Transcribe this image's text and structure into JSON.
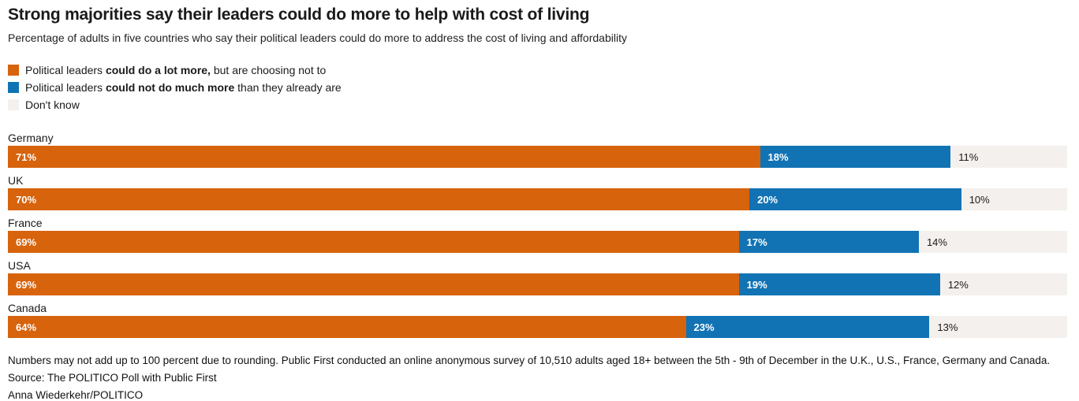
{
  "header": {
    "title": "Strong majorities say their leaders could do more to help with cost of living",
    "subtitle": "Percentage of adults in five countries who say their political leaders could do more to address the cost of living and affordability"
  },
  "colors": {
    "could_do_more": "#D7630D",
    "could_not_do_more": "#1173B4",
    "dont_know": "#F4F0ED",
    "text_dark": "#1A1A1A"
  },
  "legend": {
    "items": [
      {
        "swatch": "orange-swatch",
        "prefix": "Political leaders ",
        "bold": "could do a lot more,",
        "suffix": " but are choosing not to"
      },
      {
        "swatch": "blue-swatch",
        "prefix": "Political leaders ",
        "bold": "could not do much more",
        "suffix": " than they already are"
      },
      {
        "swatch": "gray-swatch",
        "prefix": "Don't know",
        "bold": "",
        "suffix": ""
      }
    ]
  },
  "chart_data": {
    "type": "bar",
    "orientation": "horizontal-stacked",
    "title": "Strong majorities say their leaders could do more to help with cost of living",
    "xlabel": "",
    "ylabel": "",
    "xlim": [
      0,
      100
    ],
    "grid": false,
    "legend_position": "top-left",
    "categories": [
      "Germany",
      "UK",
      "France",
      "USA",
      "Canada"
    ],
    "series": [
      {
        "name": "Political leaders could do a lot more, but are choosing not to",
        "color": "#D7630D",
        "values": [
          71,
          70,
          69,
          69,
          64
        ]
      },
      {
        "name": "Political leaders could not do much more than they already are",
        "color": "#1173B4",
        "values": [
          18,
          20,
          17,
          19,
          23
        ]
      },
      {
        "name": "Don't know",
        "color": "#F4F0ED",
        "values": [
          11,
          10,
          14,
          12,
          13
        ]
      }
    ],
    "rows": [
      {
        "country": "Germany",
        "a": 71,
        "b": 18,
        "c": 11,
        "a_label": "71%",
        "b_label": "18%",
        "c_label": "11%"
      },
      {
        "country": "UK",
        "a": 70,
        "b": 20,
        "c": 10,
        "a_label": "70%",
        "b_label": "20%",
        "c_label": "10%"
      },
      {
        "country": "France",
        "a": 69,
        "b": 17,
        "c": 14,
        "a_label": "69%",
        "b_label": "17%",
        "c_label": "14%"
      },
      {
        "country": "USA",
        "a": 69,
        "b": 19,
        "c": 12,
        "a_label": "69%",
        "b_label": "19%",
        "c_label": "12%"
      },
      {
        "country": "Canada",
        "a": 64,
        "b": 23,
        "c": 13,
        "a_label": "64%",
        "b_label": "23%",
        "c_label": "13%"
      }
    ]
  },
  "footer": {
    "note": "Numbers may not add up to 100 percent due to rounding. Public First conducted an online anonymous survey of 10,510 adults aged 18+ between the 5th - 9th of December in the U.K., U.S., France, Germany and Canada.",
    "source": "Source: The POLITICO Poll with Public First",
    "byline": "Anna Wiederkehr/POLITICO"
  }
}
